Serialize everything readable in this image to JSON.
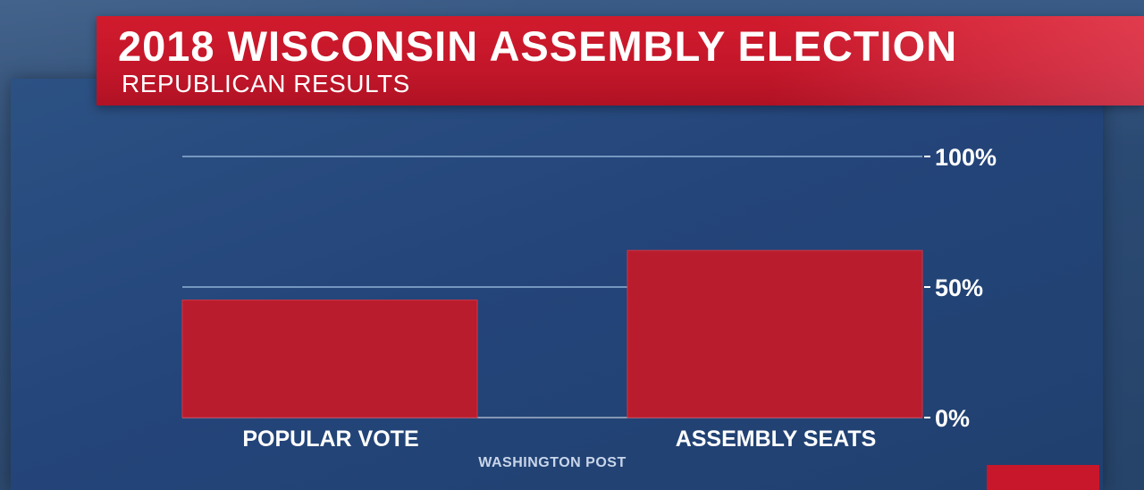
{
  "banner": {
    "title": "2018 WISCONSIN ASSEMBLY ELECTION",
    "subtitle": "REPUBLICAN RESULTS"
  },
  "source": "WASHINGTON POST",
  "colors": {
    "bar": "#b91c2c",
    "banner": "#c8162a",
    "background": "#24457a",
    "gridline": "#8fb2d6"
  },
  "chart_data": {
    "type": "bar",
    "categories": [
      "POPULAR VOTE",
      "ASSEMBLY SEATS"
    ],
    "values": [
      45,
      64
    ],
    "ylim": [
      0,
      100
    ],
    "yticks": [
      {
        "value": 0,
        "label": "0%"
      },
      {
        "value": 50,
        "label": "50%"
      },
      {
        "value": 100,
        "label": "100%"
      }
    ],
    "axis_side": "right",
    "grid": true
  }
}
